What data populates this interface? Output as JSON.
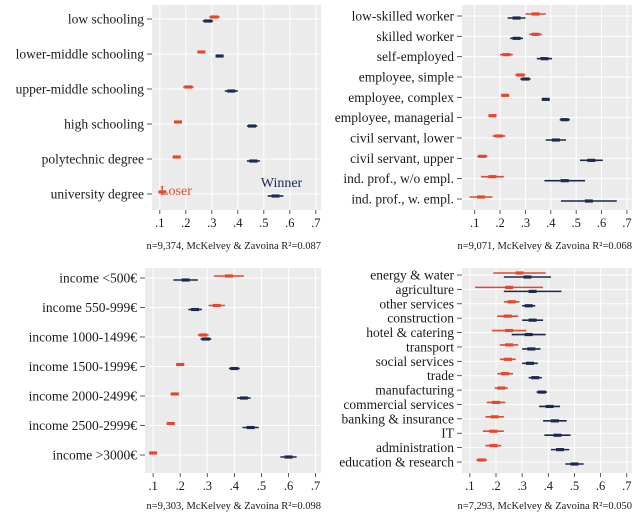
{
  "colors": {
    "loser": "#e8462b",
    "winner": "#1b2a4e",
    "panel_bg": "#ebebeb",
    "grid": "#ffffff"
  },
  "chart_data": [
    {
      "type": "scatter",
      "title": "",
      "categories": [
        "low schooling",
        "lower-middle schooling",
        "upper-middle schooling",
        "high schooling",
        "polytechnic degree",
        "university degree"
      ],
      "series": [
        {
          "name": "Loser",
          "values": [
            0.31,
            0.26,
            0.21,
            0.17,
            0.165,
            0.11
          ],
          "ci_half": [
            0.02,
            0.015,
            0.02,
            0.012,
            0.015,
            0.015
          ]
        },
        {
          "name": "Winner",
          "values": [
            0.285,
            0.33,
            0.375,
            0.455,
            0.46,
            0.545
          ],
          "ci_half": [
            0.02,
            0.015,
            0.025,
            0.02,
            0.025,
            0.03
          ]
        }
      ],
      "xlim": [
        0.07,
        0.72
      ],
      "xticks": [
        ".1",
        ".2",
        ".3",
        ".4",
        ".5",
        ".6",
        ".7"
      ],
      "legend": {
        "loser_label": "Loser",
        "winner_label": "Winner"
      },
      "footnote": "n=9,374, McKelvey & Zavoina R²=0.087"
    },
    {
      "type": "scatter",
      "title": "",
      "categories": [
        "low-skilled worker",
        "skilled worker",
        "self-employed",
        "employee, simple",
        "employee, complex",
        "employee, managerial",
        "civil servant, lower",
        "civil servant, upper",
        "ind. prof., w/o empl.",
        "ind. prof., w. empl."
      ],
      "series": [
        {
          "name": "Loser",
          "values": [
            0.34,
            0.34,
            0.225,
            0.28,
            0.22,
            0.17,
            0.195,
            0.13,
            0.17,
            0.125
          ],
          "ci_half": [
            0.04,
            0.025,
            0.025,
            0.02,
            0.015,
            0.015,
            0.025,
            0.02,
            0.045,
            0.045
          ]
        },
        {
          "name": "Winner",
          "values": [
            0.265,
            0.265,
            0.375,
            0.3,
            0.38,
            0.455,
            0.42,
            0.56,
            0.455,
            0.55
          ],
          "ci_half": [
            0.035,
            0.025,
            0.03,
            0.02,
            0.015,
            0.02,
            0.04,
            0.045,
            0.08,
            0.11
          ]
        }
      ],
      "xlim": [
        0.05,
        0.72
      ],
      "xticks": [
        ".1",
        ".2",
        ".3",
        ".4",
        ".5",
        ".6",
        ".7"
      ],
      "footnote": "n=9,071, McKelvey & Zavoina R²=0.068"
    },
    {
      "type": "scatter",
      "title": "",
      "categories": [
        "income <500€",
        "income 550-999€",
        "income 1000-1499€",
        "income 1500-1999€",
        "income 2000-2499€",
        "income 2500-2999€",
        "income >3000€"
      ],
      "series": [
        {
          "name": "Loser",
          "values": [
            0.38,
            0.335,
            0.285,
            0.2,
            0.18,
            0.165,
            0.1
          ],
          "ci_half": [
            0.055,
            0.03,
            0.02,
            0.015,
            0.015,
            0.015,
            0.01
          ]
        },
        {
          "name": "Winner",
          "values": [
            0.22,
            0.255,
            0.295,
            0.4,
            0.435,
            0.46,
            0.6
          ],
          "ci_half": [
            0.045,
            0.025,
            0.02,
            0.02,
            0.025,
            0.03,
            0.03
          ]
        }
      ],
      "xlim": [
        0.07,
        0.72
      ],
      "xticks": [
        ".1",
        ".2",
        ".3",
        ".4",
        ".5",
        ".6",
        ".7"
      ],
      "footnote": "n=9,303, McKelvey & Zavoina R²=0.098"
    },
    {
      "type": "scatter",
      "title": "",
      "categories": [
        "energy & water",
        "agriculture",
        "other services",
        "construction",
        "hotel & catering",
        "transport",
        "social services",
        "trade",
        "manufacturing",
        "commercial services",
        "banking & insurance",
        "IT",
        "administration",
        "education & research"
      ],
      "series": [
        {
          "name": "Loser",
          "values": [
            0.29,
            0.25,
            0.26,
            0.245,
            0.25,
            0.25,
            0.245,
            0.235,
            0.22,
            0.2,
            0.195,
            0.19,
            0.19,
            0.145
          ],
          "ci_half": [
            0.1,
            0.13,
            0.03,
            0.04,
            0.065,
            0.035,
            0.03,
            0.03,
            0.025,
            0.035,
            0.035,
            0.04,
            0.03,
            0.02
          ]
        },
        {
          "name": "Winner",
          "values": [
            0.32,
            0.34,
            0.325,
            0.34,
            0.325,
            0.335,
            0.33,
            0.35,
            0.375,
            0.405,
            0.425,
            0.435,
            0.445,
            0.5
          ],
          "ci_half": [
            0.09,
            0.11,
            0.025,
            0.04,
            0.065,
            0.035,
            0.03,
            0.025,
            0.02,
            0.04,
            0.045,
            0.05,
            0.035,
            0.035
          ]
        }
      ],
      "xlim": [
        0.07,
        0.72
      ],
      "xticks": [
        ".1",
        ".2",
        ".3",
        ".4",
        ".5",
        ".6",
        ".7"
      ],
      "footnote": "n=7,293, McKelvey & Zavoina R²=0.050"
    }
  ]
}
